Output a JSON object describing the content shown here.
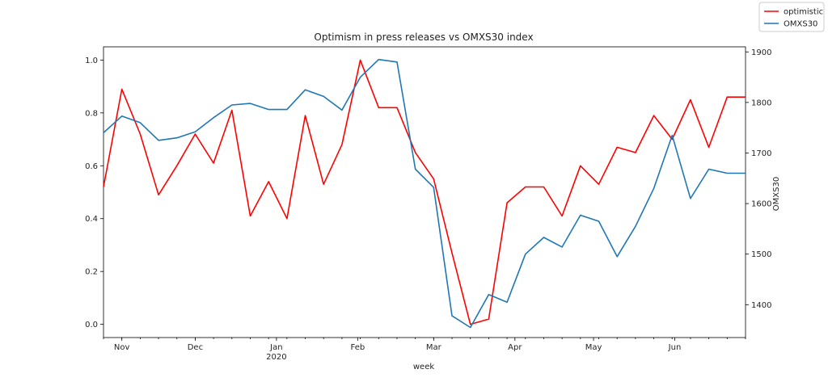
{
  "chart_data": {
    "type": "line",
    "title": "Optimism in press releases vs OMXS30 index",
    "xlabel": "week",
    "ylabel": "",
    "y2label": "OMXS30",
    "x": [
      "2019-10-27",
      "2019-11-03",
      "2019-11-10",
      "2019-11-17",
      "2019-11-24",
      "2019-12-01",
      "2019-12-08",
      "2019-12-15",
      "2019-12-22",
      "2019-12-29",
      "2020-01-05",
      "2020-01-12",
      "2020-01-19",
      "2020-01-26",
      "2020-02-02",
      "2020-02-09",
      "2020-02-16",
      "2020-02-23",
      "2020-03-01",
      "2020-03-08",
      "2020-03-15",
      "2020-03-22",
      "2020-03-29",
      "2020-04-05",
      "2020-04-12",
      "2020-04-19",
      "2020-04-26",
      "2020-05-03",
      "2020-05-10",
      "2020-05-17",
      "2020-05-24",
      "2020-05-31",
      "2020-06-07",
      "2020-06-14",
      "2020-06-21",
      "2020-06-28"
    ],
    "xlim": [
      "2019-10-27",
      "2020-06-28"
    ],
    "xticks": [
      {
        "date": "2019-11-03",
        "label": "Nov",
        "sub": ""
      },
      {
        "date": "2019-12-01",
        "label": "Dec",
        "sub": ""
      },
      {
        "date": "2020-01-01",
        "label": "Jan",
        "sub": "2020"
      },
      {
        "date": "2020-02-01",
        "label": "Feb",
        "sub": ""
      },
      {
        "date": "2020-03-01",
        "label": "Mar",
        "sub": ""
      },
      {
        "date": "2020-04-01",
        "label": "Apr",
        "sub": ""
      },
      {
        "date": "2020-05-01",
        "label": "May",
        "sub": ""
      },
      {
        "date": "2020-06-01",
        "label": "Jun",
        "sub": ""
      }
    ],
    "ylim": [
      -0.05,
      1.05
    ],
    "yticks": [
      "0.0",
      "0.2",
      "0.4",
      "0.6",
      "0.8",
      "1.0"
    ],
    "y2lim": [
      1335,
      1910
    ],
    "y2ticks": [
      "1400",
      "1500",
      "1600",
      "1700",
      "1800",
      "1900"
    ],
    "series": [
      {
        "name": "optimistic",
        "axis": "left",
        "color": "#ff0000",
        "values": [
          0.52,
          0.89,
          0.72,
          0.49,
          0.6,
          0.72,
          0.61,
          0.81,
          0.41,
          0.54,
          0.4,
          0.79,
          0.53,
          0.68,
          1.0,
          0.82,
          0.82,
          0.65,
          0.55,
          0.27,
          0.0,
          0.02,
          0.46,
          0.52,
          0.52,
          0.41,
          0.6,
          0.53,
          0.67,
          0.65,
          0.79,
          0.7,
          0.85,
          0.67,
          0.86,
          0.86
        ]
      },
      {
        "name": "OMXS30",
        "axis": "right",
        "color": "#1f77b4",
        "values": [
          1740,
          1773,
          1760,
          1725,
          1730,
          1742,
          1770,
          1795,
          1798,
          1786,
          1786,
          1825,
          1812,
          1785,
          1850,
          1885,
          1880,
          1668,
          1632,
          1378,
          1355,
          1420,
          1405,
          1500,
          1533,
          1514,
          1577,
          1565,
          1495,
          1555,
          1630,
          1735,
          1610,
          1668,
          1660,
          1660
        ]
      }
    ],
    "legend": {
      "position": "top-right",
      "entries": [
        "optimistic",
        "OMXS30"
      ]
    },
    "grid": false
  }
}
